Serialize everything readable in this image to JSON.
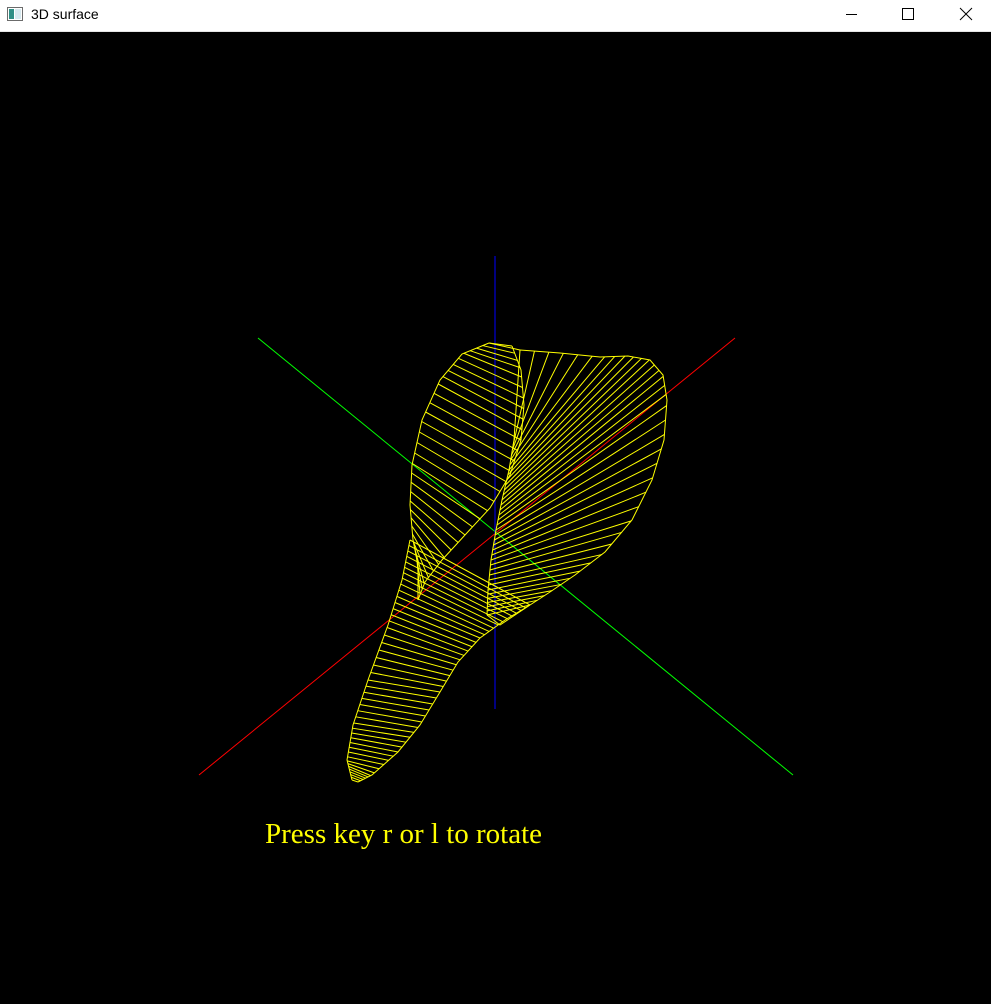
{
  "window": {
    "title": "3D surface",
    "icon": "app-window-icon",
    "controls": [
      {
        "name": "minimize-button",
        "icon": "minimize-icon"
      },
      {
        "name": "maximize-button",
        "icon": "maximize-icon"
      },
      {
        "name": "close-button",
        "icon": "close-icon"
      }
    ]
  },
  "scene": {
    "background": "#000000",
    "surface_color": "#ffff00",
    "axes": [
      {
        "name": "x-axis",
        "color": "#ff0000"
      },
      {
        "name": "y-axis",
        "color": "#00ff00"
      },
      {
        "name": "z-axis",
        "color": "#0000ff"
      }
    ]
  },
  "hint_text": "Press key r or l to rotate"
}
